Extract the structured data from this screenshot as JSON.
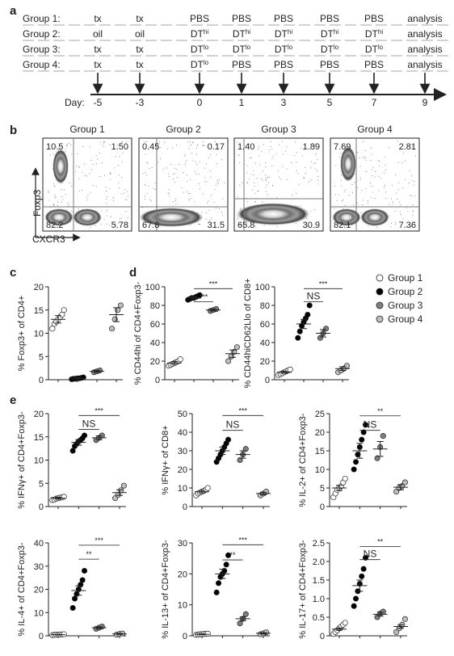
{
  "panel_a": {
    "letter": "a",
    "groups": [
      {
        "name": "Group 1:",
        "cells": [
          "tx",
          "tx",
          "PBS",
          "PBS",
          "PBS",
          "PBS",
          "PBS",
          "analysis"
        ]
      },
      {
        "name": "Group 2:",
        "cells": [
          "oil",
          "oil",
          "DT^hi",
          "DT^hi",
          "DT^hi",
          "DT^hi",
          "DT^hi",
          "analysis"
        ]
      },
      {
        "name": "Group 3:",
        "cells": [
          "tx",
          "tx",
          "DT^lo",
          "DT^lo",
          "DT^lo",
          "DT^lo",
          "DT^lo",
          "analysis"
        ]
      },
      {
        "name": "Group 4:",
        "cells": [
          "tx",
          "tx",
          "DT^lo",
          "PBS",
          "PBS",
          "PBS",
          "PBS",
          "analysis"
        ]
      }
    ],
    "day_label": "Day:",
    "days": [
      "-5",
      "-3",
      "0",
      "1",
      "3",
      "5",
      "7",
      "9"
    ]
  },
  "panel_b": {
    "letter": "b",
    "ylabel": "Foxp3",
    "xlabel": "CXCR3",
    "plots": [
      {
        "title": "Group 1",
        "ul": "10.5",
        "ur": "1.50",
        "ll": "82.2",
        "lr": "5.78"
      },
      {
        "title": "Group 2",
        "ul": "0.45",
        "ur": "0.17",
        "ll": "67.8",
        "lr": "31.5"
      },
      {
        "title": "Group 3",
        "ul": "1.40",
        "ur": "1.89",
        "ll": "65.8",
        "lr": "30.9"
      },
      {
        "title": "Group 4",
        "ul": "7.69",
        "ur": "2.81",
        "ll": "82.1",
        "lr": "7.36"
      }
    ]
  },
  "legend": {
    "items": [
      {
        "name": "Group 1",
        "color": "#ffffff"
      },
      {
        "name": "Group 2",
        "color": "#000000"
      },
      {
        "name": "Group 3",
        "color": "#7f7f7f"
      },
      {
        "name": "Group 4",
        "color": "#bdbdbd"
      }
    ]
  },
  "panel_c": {
    "letter": "c"
  },
  "panel_d": {
    "letter": "d"
  },
  "panel_e": {
    "letter": "e"
  },
  "chart_data": [
    {
      "type": "scatter",
      "panel": "c",
      "ylabel": "% Foxp3+ of CD4+",
      "ylim": [
        0,
        20
      ],
      "yticks": [
        0,
        5,
        10,
        15,
        20
      ],
      "means": [
        13,
        0.3,
        1.8,
        14
      ],
      "sem": [
        0.8,
        0.1,
        0.2,
        1.5
      ],
      "points": [
        [
          11,
          12,
          12.5,
          13,
          13.5,
          14,
          15
        ],
        [
          0.1,
          0.2,
          0.2,
          0.3,
          0.3,
          0.4,
          0.5
        ],
        [
          1.6,
          1.8,
          2.0
        ],
        [
          11,
          13,
          15,
          16
        ]
      ],
      "brackets": []
    },
    {
      "type": "scatter",
      "panel": "d1",
      "ylabel": "% CD44hi of CD4+Foxp3-",
      "ylim": [
        0,
        100
      ],
      "yticks": [
        0,
        20,
        40,
        60,
        80,
        100
      ],
      "means": [
        18,
        88,
        75,
        28
      ],
      "sem": [
        1.5,
        1.0,
        1.0,
        4
      ],
      "points": [
        [
          15,
          16,
          17,
          18,
          19,
          20,
          22
        ],
        [
          86,
          87,
          88,
          88,
          89,
          90,
          91
        ],
        [
          74,
          75,
          76
        ],
        [
          20,
          25,
          30,
          35
        ]
      ],
      "brackets": [
        {
          "from": 1,
          "to": 2,
          "y": 84,
          "label": "***"
        },
        {
          "from": 1,
          "to": 3,
          "y": 98,
          "label": "***"
        }
      ]
    },
    {
      "type": "scatter",
      "panel": "d2",
      "ylabel": "% CD44hiCD62Llo of CD8+",
      "ylim": [
        0,
        100
      ],
      "yticks": [
        0,
        20,
        40,
        60,
        80,
        100
      ],
      "means": [
        8,
        60,
        50,
        12
      ],
      "sem": [
        1,
        5,
        4,
        2
      ],
      "points": [
        [
          5,
          6,
          7,
          8,
          9,
          10,
          11
        ],
        [
          45,
          52,
          58,
          62,
          66,
          70,
          80
        ],
        [
          45,
          50,
          55
        ],
        [
          8,
          10,
          12,
          15
        ]
      ],
      "brackets": [
        {
          "from": 1,
          "to": 2,
          "y": 84,
          "label": "NS"
        },
        {
          "from": 1,
          "to": 3,
          "y": 98,
          "label": "***"
        }
      ]
    },
    {
      "type": "scatter",
      "panel": "e1",
      "ylabel": "% IFNγ+ of CD4+Foxp3-",
      "ylim": [
        0,
        20
      ],
      "yticks": [
        0,
        5,
        10,
        15,
        20
      ],
      "means": [
        1.8,
        13.8,
        14.8,
        3.0
      ],
      "sem": [
        0.2,
        0.6,
        0.4,
        0.6
      ],
      "points": [
        [
          1.4,
          1.5,
          1.7,
          1.8,
          1.9,
          2.0,
          2.1
        ],
        [
          12,
          13,
          13.5,
          14,
          14.3,
          14.7,
          15.3
        ],
        [
          14.3,
          14.8,
          15.3
        ],
        [
          1.8,
          2.5,
          3.5,
          4.5
        ]
      ],
      "brackets": [
        {
          "from": 1,
          "to": 2,
          "y": 16.6,
          "label": "NS"
        },
        {
          "from": 1,
          "to": 3,
          "y": 19.6,
          "label": "***"
        }
      ]
    },
    {
      "type": "scatter",
      "panel": "e2",
      "ylabel": "% IFNγ+ of CD8+",
      "ylim": [
        0,
        50
      ],
      "yticks": [
        0,
        10,
        20,
        30,
        40,
        50
      ],
      "means": [
        8,
        30,
        28,
        7
      ],
      "sem": [
        0.7,
        2,
        2,
        0.7
      ],
      "points": [
        [
          6,
          7,
          7.5,
          8,
          8.5,
          9,
          10
        ],
        [
          24,
          26,
          28,
          30,
          32,
          34,
          36
        ],
        [
          25,
          28,
          31
        ],
        [
          6,
          7,
          8
        ]
      ],
      "brackets": [
        {
          "from": 1,
          "to": 2,
          "y": 41,
          "label": "NS"
        },
        {
          "from": 1,
          "to": 3,
          "y": 49,
          "label": "***"
        }
      ]
    },
    {
      "type": "scatter",
      "panel": "e3",
      "ylabel": "% IL-2+ of CD4+Foxp3-",
      "ylim": [
        0,
        25
      ],
      "yticks": [
        0,
        5,
        10,
        15,
        20,
        25
      ],
      "means": [
        5,
        15,
        15.5,
        5.2
      ],
      "sem": [
        0.7,
        2,
        2,
        0.7
      ],
      "points": [
        [
          2.5,
          3.5,
          4.5,
          5,
          5.5,
          6.5,
          7.5
        ],
        [
          10,
          12,
          14,
          16,
          18,
          20,
          22
        ],
        [
          13,
          16,
          19
        ],
        [
          4,
          5,
          5.5,
          6.5
        ]
      ],
      "brackets": [
        {
          "from": 1,
          "to": 2,
          "y": 20.5,
          "label": "NS"
        },
        {
          "from": 1,
          "to": 3,
          "y": 24.4,
          "label": "**"
        }
      ]
    },
    {
      "type": "scatter",
      "panel": "e4",
      "ylabel": "% IL-4+ of CD4+Foxp3-",
      "ylim": [
        0,
        40
      ],
      "yticks": [
        0,
        10,
        20,
        30,
        40
      ],
      "means": [
        0.5,
        19.5,
        3.5,
        0.8
      ],
      "sem": [
        0.1,
        2,
        0.4,
        0.2
      ],
      "points": [
        [
          0.3,
          0.4,
          0.5,
          0.5,
          0.6,
          0.6,
          0.7
        ],
        [
          12,
          16,
          18,
          20,
          22,
          24,
          28
        ],
        [
          3,
          3.5,
          4
        ],
        [
          0.5,
          0.8,
          1.0
        ]
      ],
      "brackets": [
        {
          "from": 1,
          "to": 2,
          "y": 33,
          "label": "**"
        },
        {
          "from": 1,
          "to": 3,
          "y": 39,
          "label": "***"
        }
      ]
    },
    {
      "type": "scatter",
      "panel": "e5",
      "ylabel": "% IL-13+ of CD4+Foxp3-",
      "ylim": [
        0,
        30
      ],
      "yticks": [
        0,
        10,
        20,
        30
      ],
      "means": [
        0.5,
        20,
        5.5,
        0.8
      ],
      "sem": [
        0.1,
        1.5,
        0.6,
        0.2
      ],
      "points": [
        [
          0.3,
          0.4,
          0.5,
          0.5,
          0.6,
          0.6,
          0.7
        ],
        [
          14,
          17,
          19,
          20,
          21,
          23,
          26
        ],
        [
          4,
          5.5,
          7
        ],
        [
          0.5,
          0.8,
          1.1
        ]
      ],
      "brackets": [
        {
          "from": 1,
          "to": 2,
          "y": 24.5,
          "label": "**"
        },
        {
          "from": 1,
          "to": 3,
          "y": 29.4,
          "label": "***"
        }
      ]
    },
    {
      "type": "scatter",
      "panel": "e6",
      "ylabel": "% IL-17+ of CD4+Foxp3-",
      "ylim": [
        0,
        2.5
      ],
      "yticks": [
        0,
        0.5,
        1.0,
        1.5,
        2.0,
        2.5
      ],
      "means": [
        0.18,
        1.35,
        0.58,
        0.25
      ],
      "sem": [
        0.03,
        0.15,
        0.05,
        0.05
      ],
      "points": [
        [
          0.05,
          0.1,
          0.15,
          0.2,
          0.25,
          0.3,
          0.35
        ],
        [
          0.8,
          1.0,
          1.2,
          1.4,
          1.6,
          1.8,
          2.1
        ],
        [
          0.5,
          0.6,
          0.65
        ],
        [
          0.1,
          0.2,
          0.3,
          0.45
        ]
      ],
      "brackets": [
        {
          "from": 1,
          "to": 2,
          "y": 2.05,
          "label": "NS"
        },
        {
          "from": 1,
          "to": 3,
          "y": 2.4,
          "label": "**"
        }
      ]
    }
  ]
}
